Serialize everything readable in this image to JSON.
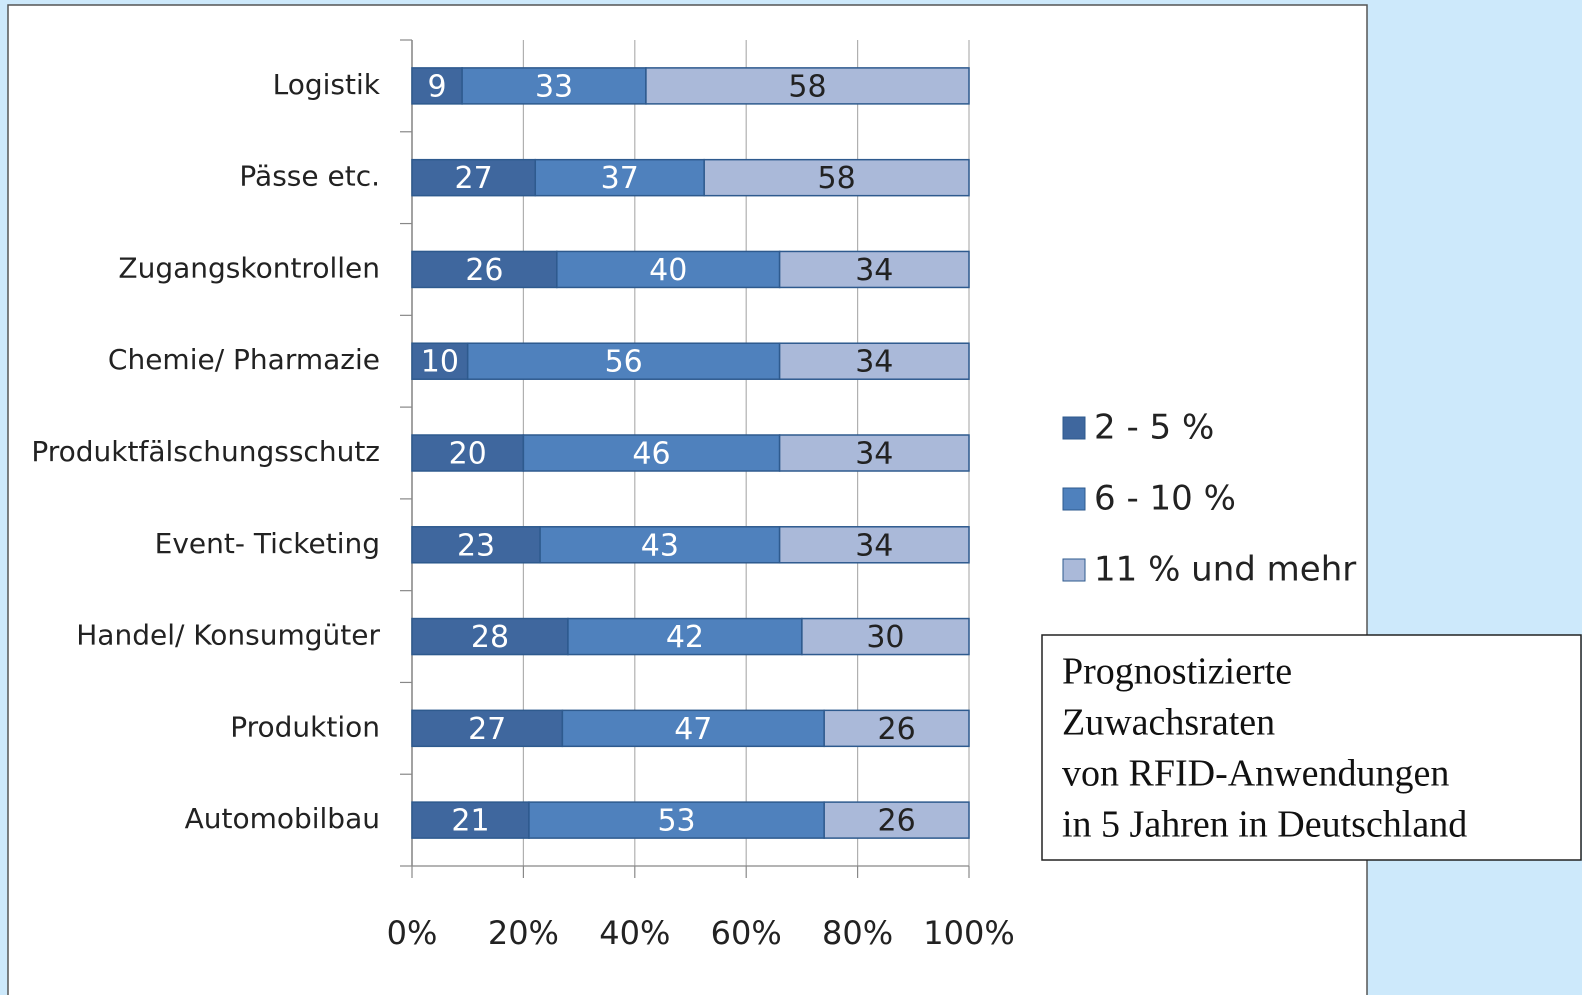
{
  "chart_data": {
    "type": "stacked_bar_100",
    "categories": [
      "Logistik",
      "Pässe etc.",
      "Zugangskontrollen",
      "Chemie/ Pharmazie",
      "Produktfälschungsschutz",
      "Event- Ticketing",
      "Handel/ Konsumgüter",
      "Produktion",
      "Automobilbau"
    ],
    "series": [
      {
        "name": "2 - 5 %",
        "color": "#3f679e",
        "values": [
          9,
          27,
          26,
          10,
          20,
          23,
          28,
          27,
          21
        ]
      },
      {
        "name": "6 - 10 %",
        "color": "#4f81bd",
        "values": [
          33,
          37,
          40,
          56,
          46,
          43,
          42,
          47,
          53
        ]
      },
      {
        "name": "11 % und mehr",
        "color": "#aab9d9",
        "values": [
          58,
          58,
          34,
          34,
          34,
          34,
          30,
          26,
          26
        ]
      }
    ],
    "xlim": [
      0,
      100
    ],
    "xticks": [
      {
        "value": 0,
        "label": "0%"
      },
      {
        "value": 20,
        "label": "20%"
      },
      {
        "value": 40,
        "label": "40%"
      },
      {
        "value": 60,
        "label": "60%"
      },
      {
        "value": 80,
        "label": "80%"
      },
      {
        "value": 100,
        "label": "100%"
      }
    ],
    "grid": true,
    "legend": "right",
    "annotation": [
      "Prognostizierte",
      "Zuwachsraten",
      "von RFID-Anwendungen",
      "in 5 Jahren in Deutschland"
    ]
  }
}
